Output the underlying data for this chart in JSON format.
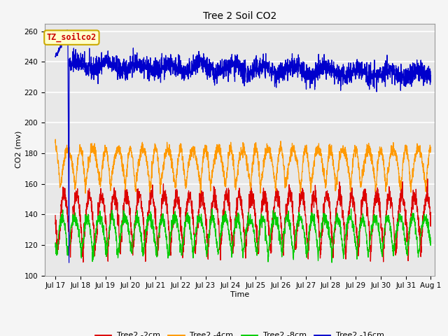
{
  "title": "Tree 2 Soil CO2",
  "xlabel": "Time",
  "ylabel": "CO2 (mv)",
  "ylim": [
    100,
    265
  ],
  "annotation_text": "TZ_soilco2",
  "annotation_color": "#cc0000",
  "annotation_bg": "#ffffcc",
  "annotation_border": "#ccaa00",
  "x_tick_labels": [
    "Jul 17",
    "Jul 18",
    "Jul 19",
    "Jul 20",
    "Jul 21",
    "Jul 22",
    "Jul 23",
    "Jul 24",
    "Jul 25",
    "Jul 26",
    "Jul 27",
    "Jul 28",
    "Jul 29",
    "Jul 30",
    "Jul 31",
    "Aug 1"
  ],
  "legend_labels": [
    "Tree2 -2cm",
    "Tree2 -4cm",
    "Tree2 -8cm",
    "Tree2 -16cm"
  ],
  "legend_colors": [
    "#dd0000",
    "#ff9900",
    "#00cc00",
    "#0000cc"
  ],
  "line_colors": [
    "#dd0000",
    "#ff9900",
    "#00cc00",
    "#0000cc"
  ],
  "background_color": "#e8e8e8",
  "grid_color": "#ffffff",
  "title_fontsize": 10,
  "label_fontsize": 8,
  "tick_fontsize": 7.5
}
